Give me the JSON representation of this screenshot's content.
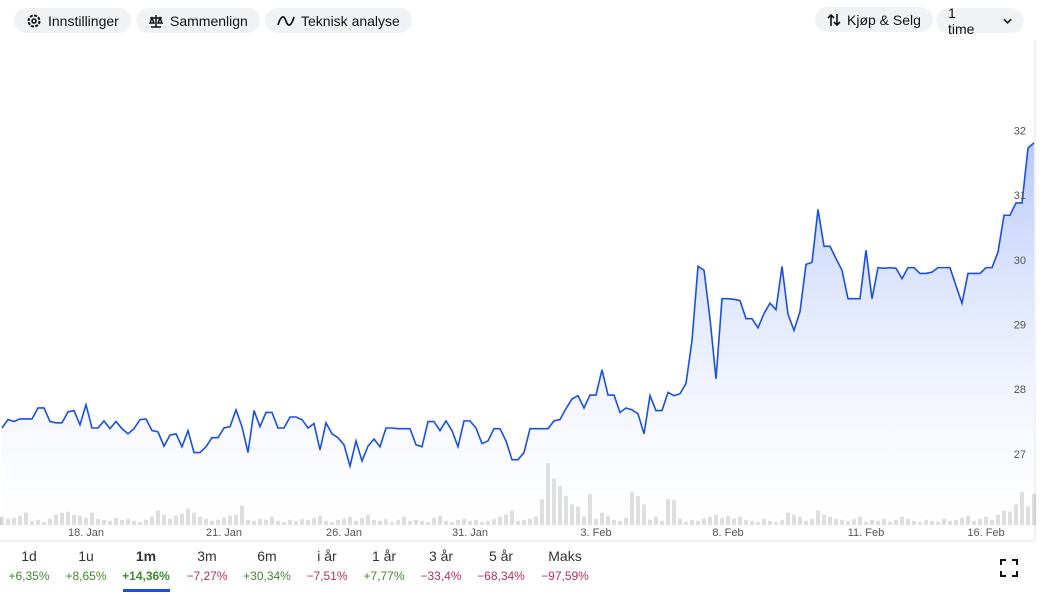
{
  "toolbar": {
    "left": [
      "Innstillinger",
      "Sammenlign",
      "Teknisk analyse"
    ],
    "buy_sell": "Kjøp & Selg",
    "interval": "1 time"
  },
  "chart_data": {
    "type": "line",
    "color": "#1a4fe0",
    "volume_color": "#d0d0d0",
    "categories": [
      null,
      null,
      null,
      null,
      null,
      null,
      null,
      null,
      null,
      null,
      null,
      null,
      null,
      null,
      "18. Jan",
      null,
      null,
      null,
      null,
      null,
      null,
      null,
      null,
      null,
      null,
      null,
      null,
      null,
      null,
      null,
      null,
      null,
      null,
      null,
      null,
      null,
      null,
      "21. Jan",
      null,
      null,
      null,
      null,
      null,
      null,
      null,
      null,
      null,
      null,
      null,
      null,
      null,
      null,
      null,
      null,
      null,
      null,
      null,
      "26. Jan",
      null,
      null,
      null,
      null,
      null,
      null,
      null,
      null,
      null,
      null,
      null,
      null,
      null,
      null,
      null,
      null,
      null,
      null,
      null,
      null,
      "31. Jan",
      null,
      null,
      null,
      null,
      null,
      null,
      null,
      null,
      null,
      null,
      null,
      null,
      null,
      null,
      null,
      null,
      null,
      null,
      null,
      null,
      "3. Feb",
      null,
      null,
      null,
      null,
      null,
      null,
      null,
      null,
      null,
      null,
      null,
      null,
      null,
      null,
      null,
      null,
      null,
      null,
      null,
      null,
      null,
      "8. Feb",
      null,
      null,
      null,
      null,
      null,
      null,
      null,
      null,
      null,
      null,
      null,
      null,
      null,
      null,
      null,
      null,
      null,
      null,
      null,
      null,
      null,
      null,
      "11. Feb",
      null,
      null,
      null,
      null,
      null,
      null,
      null,
      null,
      null,
      null,
      null,
      null,
      null,
      null,
      null,
      null,
      null,
      null,
      null,
      "16. Feb",
      null,
      null,
      null,
      null,
      null,
      null,
      null,
      null
    ],
    "values": [
      27.4,
      27.53,
      27.5,
      27.54,
      27.54,
      27.54,
      27.71,
      27.71,
      27.5,
      27.48,
      27.48,
      27.65,
      27.67,
      27.45,
      27.76,
      27.4,
      27.4,
      27.51,
      27.39,
      27.5,
      27.39,
      27.31,
      27.39,
      27.53,
      27.54,
      27.36,
      27.34,
      27.12,
      27.29,
      27.31,
      27.11,
      27.36,
      27.02,
      27.02,
      27.11,
      27.25,
      27.25,
      27.4,
      27.42,
      27.68,
      27.42,
      27.02,
      27.67,
      27.42,
      27.64,
      27.64,
      27.4,
      27.4,
      27.57,
      27.57,
      27.53,
      27.4,
      27.47,
      27.06,
      27.48,
      27.31,
      27.25,
      27.14,
      26.81,
      27.2,
      26.89,
      27.12,
      27.23,
      27.11,
      27.4,
      27.4,
      27.39,
      27.39,
      27.39,
      27.14,
      27.11,
      27.5,
      27.5,
      27.36,
      27.51,
      27.36,
      27.11,
      27.51,
      27.51,
      27.4,
      27.16,
      27.2,
      27.39,
      27.39,
      27.2,
      26.91,
      26.91,
      27.02,
      27.39,
      27.39,
      27.39,
      27.39,
      27.51,
      27.53,
      27.7,
      27.85,
      27.9,
      27.71,
      27.91,
      27.91,
      28.3,
      27.91,
      27.91,
      27.64,
      27.71,
      27.68,
      27.62,
      27.31,
      27.9,
      27.67,
      27.67,
      27.95,
      27.9,
      27.93,
      28.09,
      28.75,
      29.9,
      29.84,
      29.09,
      28.16,
      29.4,
      29.4,
      29.39,
      29.37,
      29.09,
      29.09,
      28.95,
      29.17,
      29.33,
      29.23,
      29.9,
      29.16,
      28.91,
      29.2,
      29.93,
      29.96,
      30.78,
      30.21,
      30.21,
      30.02,
      29.84,
      29.4,
      29.4,
      29.4,
      30.15,
      29.4,
      29.88,
      29.87,
      29.88,
      29.87,
      29.71,
      29.88,
      29.88,
      29.79,
      29.79,
      29.81,
      29.88,
      29.88,
      29.88,
      29.6,
      29.33,
      29.79,
      29.79,
      29.79,
      29.88,
      29.88,
      30.12,
      30.69,
      30.69,
      30.88,
      30.88,
      31.73,
      31.81
    ],
    "volume": [
      8,
      6,
      7,
      9,
      12,
      4,
      5,
      3,
      6,
      10,
      12,
      13,
      10,
      9,
      7,
      12,
      6,
      5,
      4,
      7,
      5,
      6,
      4,
      3,
      5,
      8,
      14,
      10,
      6,
      9,
      11,
      16,
      12,
      8,
      6,
      4,
      5,
      7,
      9,
      10,
      19,
      5,
      4,
      6,
      5,
      8,
      4,
      3,
      5,
      4,
      6,
      5,
      7,
      9,
      4,
      3,
      5,
      6,
      8,
      4,
      7,
      10,
      5,
      4,
      6,
      3,
      5,
      8,
      4,
      5,
      4,
      3,
      7,
      9,
      4,
      3,
      5,
      6,
      4,
      5,
      3,
      4,
      6,
      8,
      10,
      14,
      4,
      5,
      6,
      8,
      25,
      60,
      45,
      38,
      28,
      20,
      18,
      8,
      30,
      6,
      12,
      9,
      5,
      4,
      7,
      32,
      28,
      20,
      5,
      8,
      4,
      25,
      24,
      6,
      3,
      5,
      4,
      6,
      8,
      10,
      7,
      9,
      6,
      8,
      5,
      4,
      3,
      6,
      4,
      3,
      5,
      12,
      10,
      8,
      4,
      6,
      14,
      10,
      8,
      6,
      5,
      4,
      6,
      8,
      3,
      5,
      4,
      6,
      3,
      5,
      8,
      6,
      4,
      3,
      5,
      4,
      3,
      6,
      4,
      5,
      7,
      9,
      4,
      6,
      8,
      5,
      10,
      14,
      13,
      20,
      32,
      18,
      30
    ],
    "ylim": [
      25.9,
      33.4
    ],
    "yticks": [
      27,
      28,
      29,
      30,
      31,
      32
    ]
  },
  "ranges": {
    "selected": 2,
    "items": [
      {
        "label": "1d",
        "change": "+6,35%",
        "up": true
      },
      {
        "label": "1u",
        "change": "+8,65%",
        "up": true
      },
      {
        "label": "1m",
        "change": "+14,36%",
        "up": true
      },
      {
        "label": "3m",
        "change": "−7,27%",
        "up": false
      },
      {
        "label": "6m",
        "change": "+30,34%",
        "up": true
      },
      {
        "label": "i år",
        "change": "−7,51%",
        "up": false
      },
      {
        "label": "1 år",
        "change": "+7,77%",
        "up": true
      },
      {
        "label": "3 år",
        "change": "−33,4%",
        "up": false
      },
      {
        "label": "5 år",
        "change": "−68,34%",
        "up": false
      },
      {
        "label": "Maks",
        "change": "−97,59%",
        "up": false
      }
    ]
  }
}
